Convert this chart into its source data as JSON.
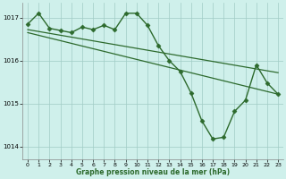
{
  "xlabel": "Graphe pression niveau de la mer (hPa)",
  "ylim": [
    1013.7,
    1017.35
  ],
  "xlim": [
    -0.5,
    23.5
  ],
  "yticks": [
    1014,
    1015,
    1016,
    1017
  ],
  "xticks": [
    0,
    1,
    2,
    3,
    4,
    5,
    6,
    7,
    8,
    9,
    10,
    11,
    12,
    13,
    14,
    15,
    16,
    17,
    18,
    19,
    20,
    21,
    22,
    23
  ],
  "bg_color": "#cff0eb",
  "grid_color": "#a0ccc5",
  "line_color": "#2d6a2d",
  "lines": [
    {
      "x": [
        0,
        1,
        2,
        3,
        4,
        5,
        6,
        7,
        8,
        9,
        10,
        11,
        12,
        13,
        14,
        15,
        16,
        17,
        18,
        19,
        20,
        21,
        22,
        23
      ],
      "y": [
        1016.85,
        1017.1,
        1016.75,
        1016.7,
        1016.65,
        1016.78,
        1016.72,
        1016.82,
        1016.72,
        1017.1,
        1017.1,
        1016.82,
        1016.35,
        1016.0,
        1015.75,
        1015.25,
        1014.6,
        1014.18,
        1014.22,
        1014.82,
        1015.08,
        1015.9,
        1015.48,
        1015.22
      ],
      "marker": "D",
      "markersize": 2.5,
      "linewidth": 1.0
    },
    {
      "x": [
        0,
        23
      ],
      "y": [
        1016.72,
        1015.72
      ],
      "marker": null,
      "linewidth": 0.9
    },
    {
      "x": [
        0,
        23
      ],
      "y": [
        1016.65,
        1015.22
      ],
      "marker": null,
      "linewidth": 0.9
    }
  ]
}
